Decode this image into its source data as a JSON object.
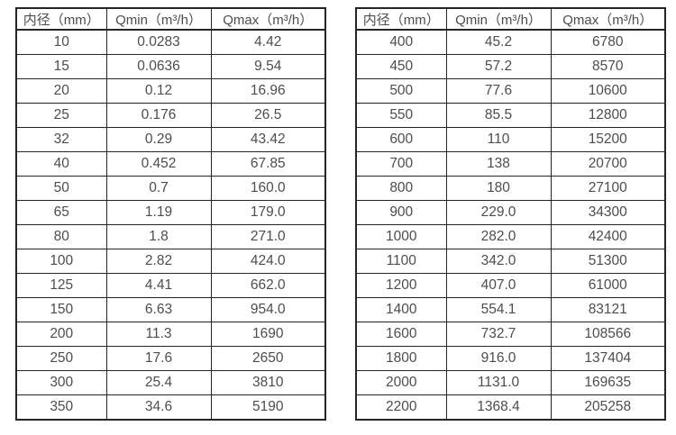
{
  "colors": {
    "background": "#ffffff",
    "border": "#262626",
    "text": "#4d4d4d"
  },
  "tables": [
    {
      "name": "flow-table-small-diameters",
      "headers": [
        "内径（mm）",
        "Qmin（m³/h）",
        "Qmax（m³/h）"
      ],
      "rows": [
        [
          "10",
          "0.0283",
          "4.42"
        ],
        [
          "15",
          "0.0636",
          "9.54"
        ],
        [
          "20",
          "0.12",
          "16.96"
        ],
        [
          "25",
          "0.176",
          "26.5"
        ],
        [
          "32",
          "0.29",
          "43.42"
        ],
        [
          "40",
          "0.452",
          "67.85"
        ],
        [
          "50",
          "0.7",
          "160.0"
        ],
        [
          "65",
          "1.19",
          "179.0"
        ],
        [
          "80",
          "1.8",
          "271.0"
        ],
        [
          "100",
          "2.82",
          "424.0"
        ],
        [
          "125",
          "4.41",
          "662.0"
        ],
        [
          "150",
          "6.63",
          "954.0"
        ],
        [
          "200",
          "11.3",
          "1690"
        ],
        [
          "250",
          "17.6",
          "2650"
        ],
        [
          "300",
          "25.4",
          "3810"
        ],
        [
          "350",
          "34.6",
          "5190"
        ]
      ]
    },
    {
      "name": "flow-table-large-diameters",
      "headers": [
        "内径（mm）",
        "Qmin（m³/h）",
        "Qmax（m³/h）"
      ],
      "rows": [
        [
          "400",
          "45.2",
          "6780"
        ],
        [
          "450",
          "57.2",
          "8570"
        ],
        [
          "500",
          "77.6",
          "10600"
        ],
        [
          "550",
          "85.5",
          "12800"
        ],
        [
          "600",
          "110",
          "15200"
        ],
        [
          "700",
          "138",
          "20700"
        ],
        [
          "800",
          "180",
          "27100"
        ],
        [
          "900",
          "229.0",
          "34300"
        ],
        [
          "1000",
          "282.0",
          "42400"
        ],
        [
          "1100",
          "342.0",
          "51300"
        ],
        [
          "1200",
          "407.0",
          "61000"
        ],
        [
          "1400",
          "554.1",
          "83121"
        ],
        [
          "1600",
          "732.7",
          "108566"
        ],
        [
          "1800",
          "916.0",
          "137404"
        ],
        [
          "2000",
          "1131.0",
          "169635"
        ],
        [
          "2200",
          "1368.4",
          "205258"
        ]
      ]
    }
  ]
}
